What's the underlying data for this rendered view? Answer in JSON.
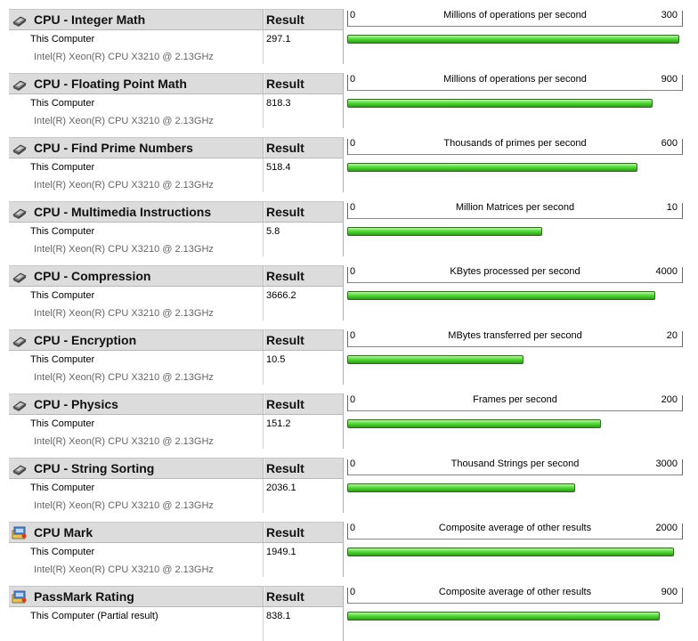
{
  "colors": {
    "bar": "#44cc2a",
    "header": "#dcdcdc",
    "cpu_text": "#666666"
  },
  "header": {
    "result_label": "Result"
  },
  "results": [
    {
      "title": "CPU - Integer Math",
      "icon": "cpu-chip-icon",
      "computer": "This Computer",
      "cpu": "Intel(R) Xeon(R) CPU X3210 @ 2.13GHz",
      "value": "297.1",
      "score": 297.1,
      "axis_min": "0",
      "axis_max": "300",
      "max": 300,
      "unit": "Millions of operations per second"
    },
    {
      "title": "CPU - Floating Point Math",
      "icon": "cpu-chip-icon",
      "computer": "This Computer",
      "cpu": "Intel(R) Xeon(R) CPU X3210 @ 2.13GHz",
      "value": "818.3",
      "score": 818.3,
      "axis_min": "0",
      "axis_max": "900",
      "max": 900,
      "unit": "Millions of operations per second"
    },
    {
      "title": "CPU - Find Prime Numbers",
      "icon": "cpu-chip-icon",
      "computer": "This Computer",
      "cpu": "Intel(R) Xeon(R) CPU X3210 @ 2.13GHz",
      "value": "518.4",
      "score": 518.4,
      "axis_min": "0",
      "axis_max": "600",
      "max": 600,
      "unit": "Thousands of primes per second"
    },
    {
      "title": "CPU - Multimedia Instructions",
      "icon": "cpu-chip-icon",
      "computer": "This Computer",
      "cpu": "Intel(R) Xeon(R) CPU X3210 @ 2.13GHz",
      "value": "5.8",
      "score": 5.8,
      "axis_min": "0",
      "axis_max": "10",
      "max": 10,
      "unit": "Million Matrices per second"
    },
    {
      "title": "CPU - Compression",
      "icon": "cpu-chip-icon",
      "computer": "This Computer",
      "cpu": "Intel(R) Xeon(R) CPU X3210 @ 2.13GHz",
      "value": "3666.2",
      "score": 3666.2,
      "axis_min": "0",
      "axis_max": "4000",
      "max": 4000,
      "unit": "KBytes processed per second"
    },
    {
      "title": "CPU - Encryption",
      "icon": "cpu-chip-icon",
      "computer": "This Computer",
      "cpu": "Intel(R) Xeon(R) CPU X3210 @ 2.13GHz",
      "value": "10.5",
      "score": 10.5,
      "axis_min": "0",
      "axis_max": "20",
      "max": 20,
      "unit": "MBytes transferred per second"
    },
    {
      "title": "CPU - Physics",
      "icon": "cpu-chip-icon",
      "computer": "This Computer",
      "cpu": "Intel(R) Xeon(R) CPU X3210 @ 2.13GHz",
      "value": "151.2",
      "score": 151.2,
      "axis_min": "0",
      "axis_max": "200",
      "max": 200,
      "unit": "Frames per second"
    },
    {
      "title": "CPU - String Sorting",
      "icon": "cpu-chip-icon",
      "computer": "This Computer",
      "cpu": "Intel(R) Xeon(R) CPU X3210 @ 2.13GHz",
      "value": "2036.1",
      "score": 2036.1,
      "axis_min": "0",
      "axis_max": "3000",
      "max": 3000,
      "unit": "Thousand Strings per second"
    },
    {
      "title": "CPU Mark",
      "icon": "passmark-rating-icon",
      "computer": "This Computer",
      "cpu": "Intel(R) Xeon(R) CPU X3210 @ 2.13GHz",
      "value": "1949.1",
      "score": 1949.1,
      "axis_min": "0",
      "axis_max": "2000",
      "max": 2000,
      "unit": "Composite average of other results"
    },
    {
      "title": "PassMark Rating",
      "icon": "passmark-rating-icon",
      "computer": "This Computer (Partial result)",
      "cpu": "",
      "value": "838.1",
      "score": 838.1,
      "axis_min": "0",
      "axis_max": "900",
      "max": 900,
      "unit": "Composite average of other results"
    }
  ]
}
